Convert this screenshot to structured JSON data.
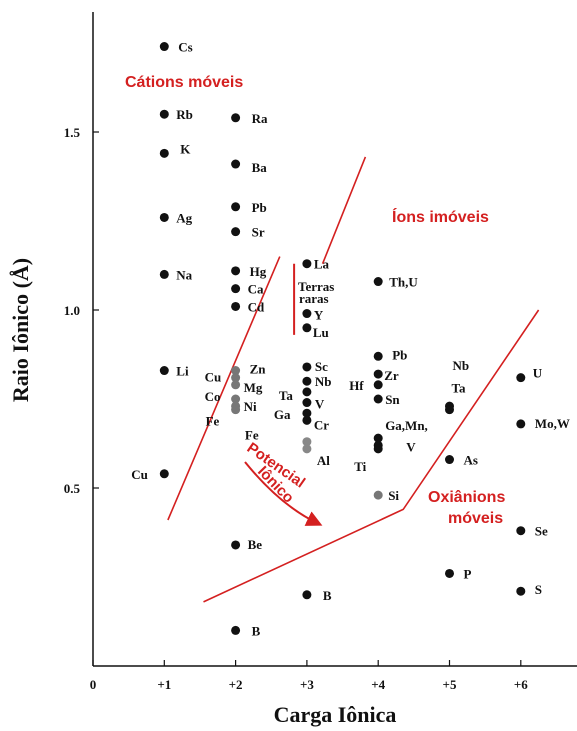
{
  "chart_data": {
    "type": "scatter",
    "title": "",
    "xlabel": "Carga Iônica",
    "ylabel": "Raio Iônico (Å)",
    "xlim": [
      0,
      6.7
    ],
    "ylim": [
      0,
      1.85
    ],
    "x_ticks": [
      {
        "v": 0,
        "label": "0"
      },
      {
        "v": 1,
        "label": "+1"
      },
      {
        "v": 2,
        "label": "+2"
      },
      {
        "v": 3,
        "label": "+3"
      },
      {
        "v": 4,
        "label": "+4"
      },
      {
        "v": 5,
        "label": "+5"
      },
      {
        "v": 6,
        "label": "+6"
      }
    ],
    "y_ticks": [
      {
        "v": 0.5,
        "label": "0.5"
      },
      {
        "v": 1.0,
        "label": "1.0"
      },
      {
        "v": 1.5,
        "label": "1.5"
      }
    ],
    "grid": false,
    "points": [
      {
        "x": 1,
        "y": 1.74,
        "label": "Cs",
        "color": "#111111"
      },
      {
        "x": 1,
        "y": 1.55,
        "label": "Rb",
        "color": "#111111"
      },
      {
        "x": 1,
        "y": 1.44,
        "label": "K",
        "color": "#111111"
      },
      {
        "x": 1,
        "y": 1.26,
        "label": "Ag",
        "color": "#111111"
      },
      {
        "x": 1,
        "y": 1.1,
        "label": "Na",
        "color": "#111111"
      },
      {
        "x": 1,
        "y": 0.83,
        "label": "Li",
        "color": "#111111"
      },
      {
        "x": 1,
        "y": 0.54,
        "label": "Cu",
        "color": "#111111"
      },
      {
        "x": 2,
        "y": 1.54,
        "label": "Ra",
        "color": "#111111"
      },
      {
        "x": 2,
        "y": 1.41,
        "label": "Ba",
        "color": "#111111"
      },
      {
        "x": 2,
        "y": 1.29,
        "label": "Pb",
        "color": "#111111"
      },
      {
        "x": 2,
        "y": 1.22,
        "label": "Sr",
        "color": "#111111"
      },
      {
        "x": 2,
        "y": 1.11,
        "label": "Hg",
        "color": "#111111"
      },
      {
        "x": 2,
        "y": 1.06,
        "label": "Ca",
        "color": "#111111"
      },
      {
        "x": 2,
        "y": 1.01,
        "label": "Cd",
        "color": "#111111"
      },
      {
        "x": 2,
        "y": 0.83,
        "label": "Zn",
        "color": "#777777"
      },
      {
        "x": 2,
        "y": 0.81,
        "label": "Cu",
        "color": "#777777"
      },
      {
        "x": 2,
        "y": 0.79,
        "label": "Mg",
        "color": "#777777"
      },
      {
        "x": 2,
        "y": 0.75,
        "label": "Co",
        "color": "#777777"
      },
      {
        "x": 2,
        "y": 0.73,
        "label": "Ni",
        "color": "#777777"
      },
      {
        "x": 2,
        "y": 0.72,
        "label": "Fe",
        "color": "#777777"
      },
      {
        "x": 2,
        "y": 0.34,
        "label": "Be",
        "color": "#111111"
      },
      {
        "x": 2,
        "y": 0.1,
        "label": "B",
        "color": "#111111"
      },
      {
        "x": 3,
        "y": 1.13,
        "label": "La",
        "color": "#111111"
      },
      {
        "x": 3,
        "y": 0.99,
        "label": "Y",
        "color": "#111111"
      },
      {
        "x": 3,
        "y": 0.95,
        "label": "Lu",
        "color": "#111111"
      },
      {
        "x": 3,
        "y": 0.84,
        "label": "Sc",
        "color": "#111111"
      },
      {
        "x": 3,
        "y": 0.8,
        "label": "Nb",
        "color": "#111111"
      },
      {
        "x": 3,
        "y": 0.77,
        "label": "Ta",
        "color": "#111111"
      },
      {
        "x": 3,
        "y": 0.74,
        "label": "V",
        "color": "#111111"
      },
      {
        "x": 3,
        "y": 0.71,
        "label": "Ga",
        "color": "#111111"
      },
      {
        "x": 3,
        "y": 0.69,
        "label": "Cr",
        "color": "#111111"
      },
      {
        "x": 3,
        "y": 0.63,
        "label": "Fe",
        "color": "#888888"
      },
      {
        "x": 3,
        "y": 0.61,
        "label": "Al",
        "color": "#888888"
      },
      {
        "x": 3,
        "y": 0.2,
        "label": "B",
        "color": "#111111"
      },
      {
        "x": 4,
        "y": 1.08,
        "label": "Th,U",
        "color": "#111111"
      },
      {
        "x": 4,
        "y": 0.87,
        "label": "Pb",
        "color": "#111111"
      },
      {
        "x": 4,
        "y": 0.82,
        "label": "Zr",
        "color": "#111111"
      },
      {
        "x": 4,
        "y": 0.79,
        "label": "Hf",
        "color": "#111111"
      },
      {
        "x": 4,
        "y": 0.75,
        "label": "Sn",
        "color": "#111111"
      },
      {
        "x": 4,
        "y": 0.64,
        "label": "Ga,Mn,",
        "color": "#111111"
      },
      {
        "x": 4,
        "y": 0.62,
        "label": "V",
        "color": "#111111"
      },
      {
        "x": 4,
        "y": 0.61,
        "label": "Ti",
        "color": "#111111"
      },
      {
        "x": 4,
        "y": 0.48,
        "label": "Si",
        "color": "#777777"
      },
      {
        "x": 5,
        "y": 0.73,
        "label": "Nb",
        "color": "#111111"
      },
      {
        "x": 5,
        "y": 0.72,
        "label": "Ta",
        "color": "#111111"
      },
      {
        "x": 5,
        "y": 0.58,
        "label": "As",
        "color": "#111111"
      },
      {
        "x": 5,
        "y": 0.26,
        "label": "P",
        "color": "#111111"
      },
      {
        "x": 6,
        "y": 0.81,
        "label": "U",
        "color": "#111111"
      },
      {
        "x": 6,
        "y": 0.68,
        "label": "Mo,W",
        "color": "#111111"
      },
      {
        "x": 6,
        "y": 0.38,
        "label": "Se",
        "color": "#111111"
      },
      {
        "x": 6,
        "y": 0.21,
        "label": "S",
        "color": "#111111"
      }
    ],
    "annotations": {
      "cations": "Cátions móveis",
      "immobile": "Íons imóveis",
      "oxyanions_1": "Oxiânions",
      "oxyanions_2": "móveis",
      "potential_1": "Potencial",
      "potential_2": "Iônico",
      "rare_earths_1": "Terras",
      "rare_earths_2": "raras"
    },
    "boundary_lines": [
      {
        "name": "cations-boundary",
        "points": [
          [
            1.05,
            0.41
          ],
          [
            2.62,
            1.15
          ]
        ]
      },
      {
        "name": "immobile-boundary",
        "points": [
          [
            3.22,
            1.13
          ],
          [
            3.82,
            1.43
          ]
        ]
      },
      {
        "name": "oxyanions-boundary",
        "points": [
          [
            1.55,
            0.18
          ],
          [
            4.35,
            0.44
          ],
          [
            6.25,
            1.0
          ]
        ]
      },
      {
        "name": "rare-earth-bracket",
        "points": [
          [
            2.82,
            1.13
          ],
          [
            2.82,
            0.93
          ]
        ]
      }
    ],
    "accent_color": "#d42020"
  }
}
